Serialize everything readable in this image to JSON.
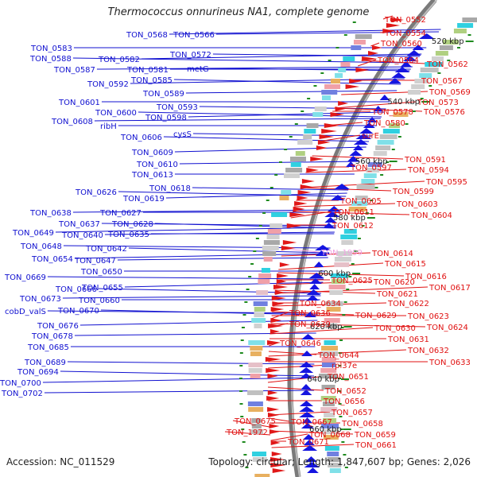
{
  "title": "Thermococcus onnurineus NA1, complete genome",
  "footer": {
    "accession": "Accession: NC_011529",
    "summary": "Topology: circular; Length: 1,847,607 bp; Genes: 2,026"
  },
  "colors": {
    "left_labels": "#1010d0",
    "right_labels": "#e01010",
    "pink_label": "#f0a0e0",
    "backbone": "#7a7a7a",
    "ticks": "#1e8a1e"
  },
  "kbp_ticks": [
    "520 kbp",
    "540 kbp",
    "560 kbp",
    "580 kbp",
    "600 kbp",
    "620 kbp",
    "640 kbp",
    "660 kbp"
  ],
  "left_labels": [
    "TON_0568",
    "TON_0566",
    "TON_0583",
    "TON_0572",
    "TON_0588",
    "TON_0582",
    "TON_0587",
    "TON_0581",
    "metG",
    "TON_0585",
    "TON_0592",
    "TON_0589",
    "TON_0601",
    "TON_0593",
    "TON_0600",
    "TON_0598",
    "TON_0608",
    "ribH",
    "cysS",
    "TON_0606",
    "TON_0609",
    "TON_0610",
    "TON_0613",
    "TON_0618",
    "TON_0626",
    "TON_0619",
    "TON_0638",
    "TON_0627",
    "TON_0637",
    "TON_0628",
    "TON_0649",
    "TON_0640",
    "TON_0635",
    "TON_0648",
    "TON_0642",
    "TON_0654",
    "TON_0647",
    "TON_0650",
    "TON_0669",
    "TON_0666",
    "TON_0655",
    "TON_0673",
    "TON_0660",
    "cobD_valS",
    "TON_0670",
    "TON_0676",
    "TON_0678",
    "TON_0685",
    "TON_0689",
    "TON_0694",
    "TON_0700",
    "TON_0702"
  ],
  "right_labels": [
    "TON_0552",
    "TON_0554",
    "TON_0560",
    "TON_0564",
    "TON_0562",
    "TON_0567",
    "TON_0569",
    "TON_0573",
    "TON_0576",
    "TON_0578",
    "TON_0580",
    "surE",
    "TON_0591",
    "TON_0597",
    "TON_0594",
    "TON_0595",
    "TON_0599",
    "TON_0605",
    "TON_0603",
    "TON_0611",
    "TON_0604",
    "TON_0612",
    "TON_0614",
    "TON_0615",
    "TON_0616",
    "TON_0625",
    "TON_0620",
    "TON_0617",
    "TON_0621",
    "TON_0634",
    "TON_0622",
    "TON_0636",
    "TON_0629",
    "TON_0623",
    "TON_0639",
    "TON_0630",
    "TON_0624",
    "TON_0631",
    "TON_0646",
    "TON_0632",
    "TON_0644",
    "TON_0633",
    "rpl37e",
    "TON_0651",
    "TON_0652",
    "TON_0656",
    "TON_0657",
    "TON_0675",
    "TON_0667",
    "TON_0658",
    "TON_1972",
    "TON_0668",
    "TON_0659",
    "TON_0671",
    "TON_0661"
  ],
  "pink_labels": [
    "TON_1999"
  ]
}
